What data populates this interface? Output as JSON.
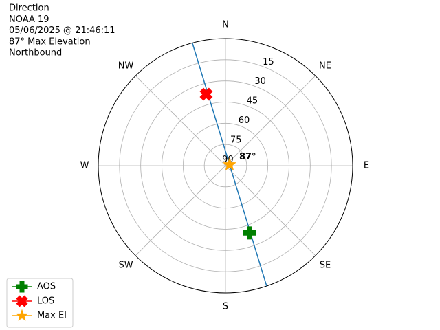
{
  "chart_data": {
    "type": "polar",
    "title_lines": [
      "Direction",
      "NOAA 19",
      "05/06/2025 @ 21:46:11",
      "87° Max Elevation",
      "Northbound"
    ],
    "ylim": [
      90,
      0
    ],
    "yticks": [
      15,
      30,
      45,
      60,
      75,
      90
    ],
    "xticks": [
      {
        "value": 0,
        "label": "N"
      },
      {
        "value": 45,
        "label": "NE"
      },
      {
        "value": 90,
        "label": "E"
      },
      {
        "value": 135,
        "label": "SE"
      },
      {
        "value": 180,
        "label": "S"
      },
      {
        "value": 225,
        "label": "SW"
      },
      {
        "value": 270,
        "label": "W"
      },
      {
        "value": 315,
        "label": "NW"
      }
    ],
    "grid": true,
    "track": {
      "color": "#1f77b4",
      "x": [
        344.9,
        346.8,
        352.6,
        76,
        153.6,
        159.2,
        161.1
      ],
      "values": [
        0,
        45.1,
        72,
        87,
        71.7,
        44.9,
        0
      ]
    },
    "series": [
      {
        "name": "AOS",
        "color": "#008000",
        "marker": "plus",
        "x": [
          160.3
        ],
        "values": [
          39.4
        ]
      },
      {
        "name": "LOS",
        "color": "#ff0000",
        "marker": "x",
        "x": [
          344.9
        ],
        "values": [
          37.6
        ]
      },
      {
        "name": "Max El",
        "color": "#ffa500",
        "marker": "star",
        "x": [
          76
        ],
        "values": [
          87
        ]
      }
    ],
    "annotation": {
      "text": "87°"
    },
    "legend": "lower left"
  }
}
